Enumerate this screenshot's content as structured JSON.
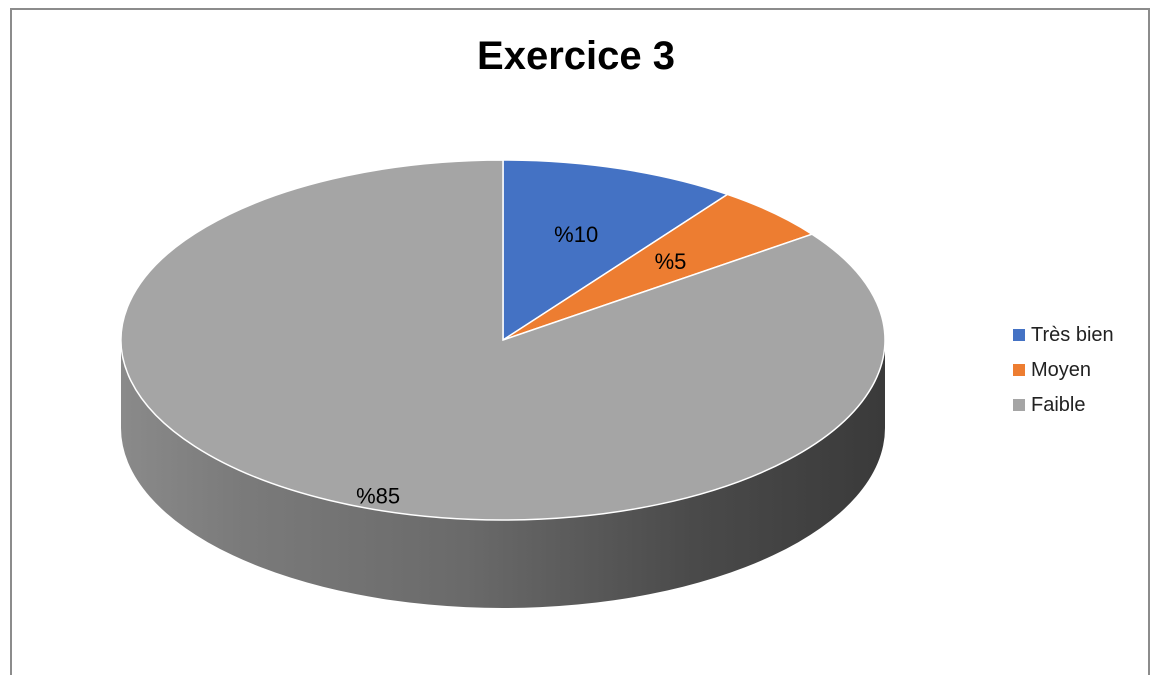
{
  "chart_data": {
    "type": "pie",
    "title": "Exercice 3",
    "categories": [
      "Très bien",
      "Moyen",
      "Faible"
    ],
    "values": [
      10,
      5,
      85
    ],
    "labels": [
      "%10",
      "%5",
      "%85"
    ],
    "colors": [
      "#4472C4",
      "#ED7D31",
      "#A5A5A5"
    ],
    "style": "3d",
    "legend_position": "right"
  }
}
